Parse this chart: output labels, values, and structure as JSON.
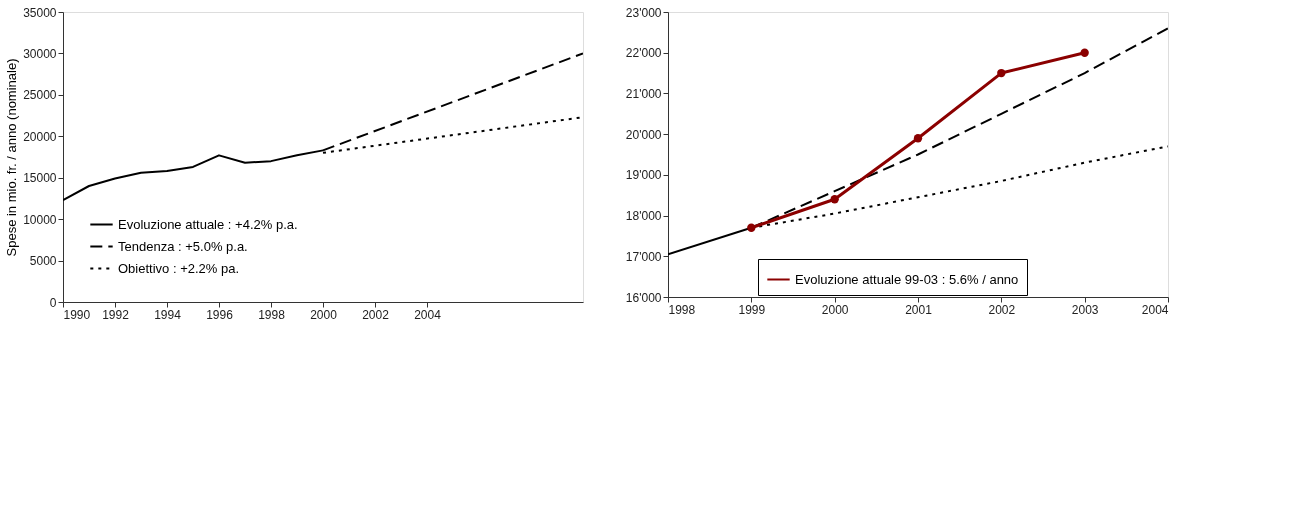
{
  "chart_data": [
    {
      "type": "line",
      "ylabel": "Spese in mio. fr. / anno (nominale)",
      "xlim": [
        1990,
        2010
      ],
      "xticks": [
        1990,
        1992,
        1994,
        1996,
        1998,
        2000,
        2002,
        2004
      ],
      "ylim": [
        0,
        35000
      ],
      "yticks": [
        0,
        5000,
        10000,
        15000,
        20000,
        25000,
        30000,
        35000
      ],
      "legend": "bottom left",
      "series": [
        {
          "name": "Evoluzione attuale : +4.2% p.a.",
          "color": "#000000",
          "line_style": "solid",
          "x": [
            1990,
            1991,
            1992,
            1993,
            1994,
            1995,
            1996,
            1997,
            1998,
            1999,
            2000
          ],
          "values": [
            12300,
            14000,
            14900,
            15600,
            15800,
            16300,
            17700,
            16800,
            17000,
            17700,
            18300
          ]
        },
        {
          "name": "Tendenza : +5.0% p.a.",
          "color": "#000000",
          "line_style": "dashed",
          "x": [
            2000,
            2010
          ],
          "values": [
            18300,
            30000
          ]
        },
        {
          "name": "Obiettivo : +2.2% pa.",
          "color": "#000000",
          "line_style": "dotted",
          "x": [
            2000,
            2010
          ],
          "values": [
            18000,
            22300
          ]
        }
      ]
    },
    {
      "type": "line",
      "xlim": [
        1998,
        2004
      ],
      "xticks": [
        1998,
        1999,
        2000,
        2001,
        2002,
        2003,
        2004
      ],
      "ylim": [
        16000,
        23000
      ],
      "yticks": [
        {
          "value": 16000,
          "label": "16'000"
        },
        {
          "value": 17000,
          "label": "17'000"
        },
        {
          "value": 18000,
          "label": "18'000"
        },
        {
          "value": 19000,
          "label": "19'000"
        },
        {
          "value": 20000,
          "label": "20'000"
        },
        {
          "value": 21000,
          "label": "21'000"
        },
        {
          "value": 22000,
          "label": "22'000"
        },
        {
          "value": 23000,
          "label": "23'000"
        }
      ],
      "legend": "bottom",
      "series": [
        {
          "color": "#000000",
          "line_style": "solid",
          "x": [
            1998,
            1999
          ],
          "values": [
            17050,
            17700
          ]
        },
        {
          "color": "#000000",
          "line_style": "dashed",
          "x": [
            1999,
            2000,
            2001,
            2002,
            2003,
            2004
          ],
          "values": [
            17700,
            18600,
            19500,
            20500,
            21500,
            22600
          ]
        },
        {
          "color": "#000000",
          "line_style": "dotted",
          "x": [
            1999,
            2000,
            2001,
            2002,
            2003,
            2004
          ],
          "values": [
            17700,
            18050,
            18450,
            18850,
            19300,
            19700
          ]
        },
        {
          "name": "Evoluzione attuale 99-03 : 5.6% / anno",
          "color": "#8b0000",
          "line_style": "solid",
          "marker": "circle",
          "x": [
            1999,
            2000,
            2001,
            2002,
            2003
          ],
          "values": [
            17700,
            18400,
            19900,
            21500,
            22000
          ]
        }
      ]
    }
  ]
}
